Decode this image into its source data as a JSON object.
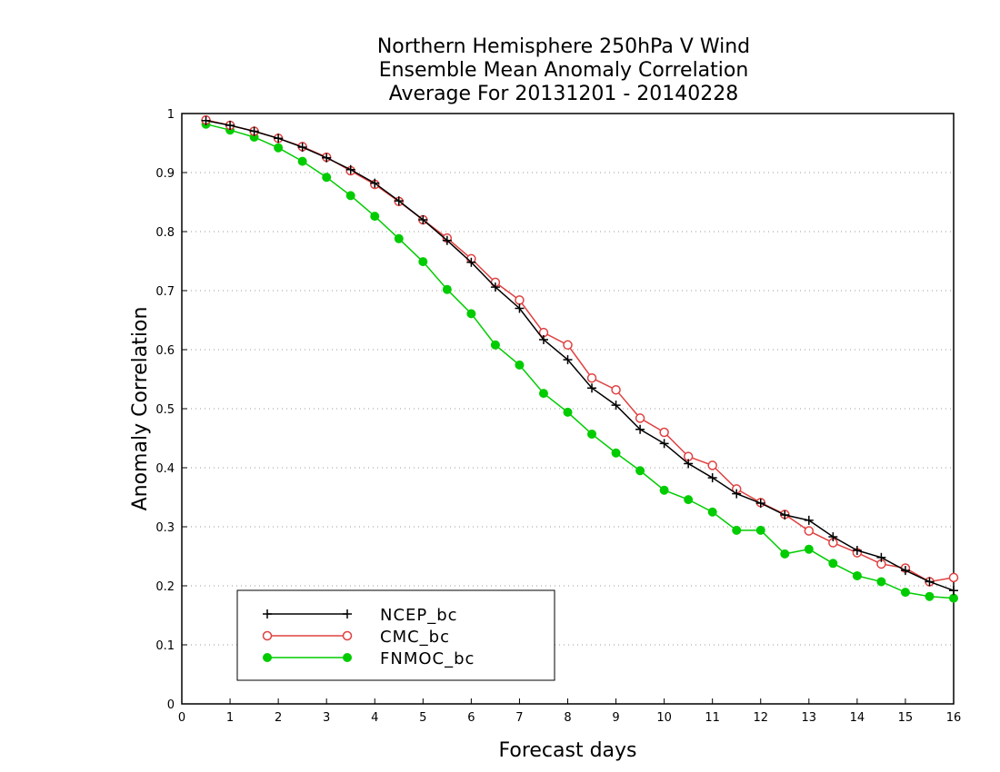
{
  "chart_data": {
    "type": "line",
    "title": [
      "Northern Hemisphere 250hPa V Wind",
      "Ensemble Mean Anomaly Correlation",
      "Average For 20131201 - 20140228"
    ],
    "xlabel": "Forecast days",
    "ylabel": "Anomaly Correlation",
    "xlim": [
      0,
      16
    ],
    "ylim": [
      0,
      1
    ],
    "xticks": [
      "0",
      "1",
      "2",
      "3",
      "4",
      "5",
      "6",
      "7",
      "8",
      "9",
      "10",
      "11",
      "12",
      "13",
      "14",
      "15",
      "16"
    ],
    "yticks": [
      "0",
      "0.1",
      "0.2",
      "0.3",
      "0.4",
      "0.5",
      "0.6",
      "0.7",
      "0.8",
      "0.9",
      "1"
    ],
    "grid": "horizontal dotted",
    "legend_position": "bottom-left",
    "x": [
      0.5,
      1,
      1.5,
      2,
      2.5,
      3,
      3.5,
      4,
      4.5,
      5,
      5.5,
      6,
      6.5,
      7,
      7.5,
      8,
      8.5,
      9,
      9.5,
      10,
      10.5,
      11,
      11.5,
      12,
      12.5,
      13,
      13.5,
      14,
      14.5,
      15,
      15.5,
      16
    ],
    "series": [
      {
        "name": "NCEP_bc",
        "color": "#000000",
        "marker": "plus",
        "values": [
          0.988,
          0.98,
          0.97,
          0.958,
          0.943,
          0.925,
          0.905,
          0.882,
          0.852,
          0.82,
          0.785,
          0.748,
          0.706,
          0.67,
          0.617,
          0.583,
          0.535,
          0.506,
          0.465,
          0.441,
          0.407,
          0.383,
          0.356,
          0.34,
          0.32,
          0.311,
          0.283,
          0.26,
          0.248,
          0.226,
          0.207,
          0.192
        ]
      },
      {
        "name": "CMC_bc",
        "color": "#e04040",
        "marker": "open-circle",
        "values": [
          0.989,
          0.98,
          0.97,
          0.958,
          0.944,
          0.926,
          0.903,
          0.88,
          0.851,
          0.82,
          0.789,
          0.754,
          0.714,
          0.684,
          0.629,
          0.608,
          0.552,
          0.532,
          0.484,
          0.46,
          0.419,
          0.404,
          0.364,
          0.341,
          0.321,
          0.293,
          0.273,
          0.256,
          0.237,
          0.23,
          0.207,
          0.214
        ]
      },
      {
        "name": "FNMOC_bc",
        "color": "#00cc00",
        "marker": "filled-circle",
        "values": [
          0.982,
          0.972,
          0.96,
          0.942,
          0.919,
          0.892,
          0.861,
          0.826,
          0.788,
          0.749,
          0.702,
          0.661,
          0.608,
          0.574,
          0.526,
          0.494,
          0.457,
          0.425,
          0.395,
          0.362,
          0.346,
          0.325,
          0.294,
          0.294,
          0.254,
          0.262,
          0.238,
          0.217,
          0.207,
          0.189,
          0.182,
          0.179
        ]
      }
    ]
  }
}
